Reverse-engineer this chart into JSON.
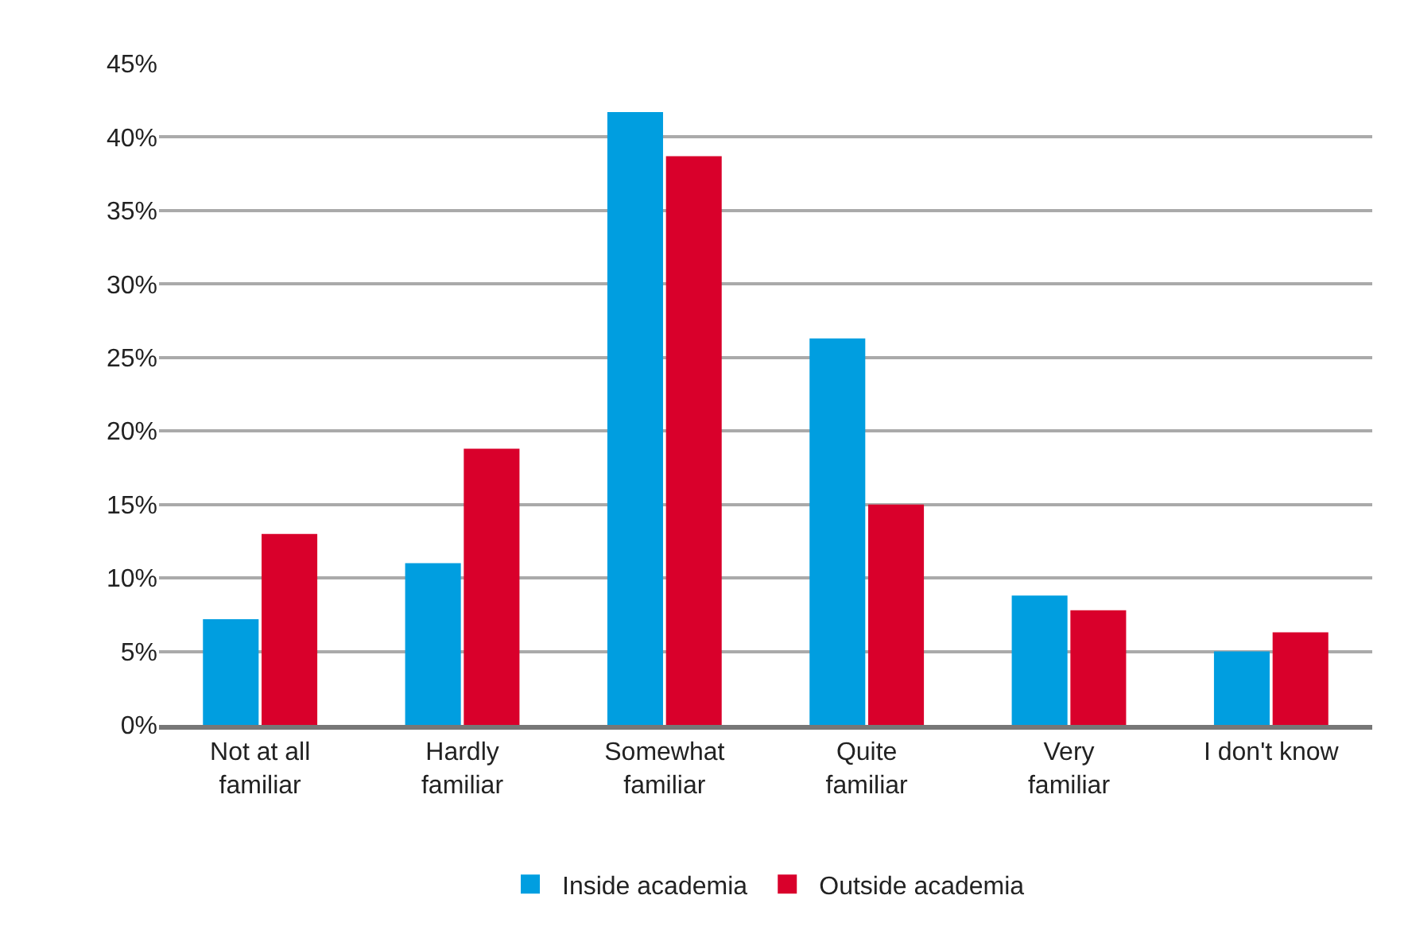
{
  "chart_data": {
    "type": "bar",
    "categories": [
      "Not at all familiar",
      "Hardly familiar",
      "Somewhat familiar",
      "Quite familiar",
      "Very familiar",
      "I don't know"
    ],
    "series": [
      {
        "name": "Inside academia",
        "color": "#009ee0",
        "values": [
          7.2,
          11.0,
          41.7,
          26.3,
          8.8,
          5.0
        ]
      },
      {
        "name": "Outside academia",
        "color": "#d9002b",
        "values": [
          13.0,
          18.8,
          38.7,
          15.0,
          7.8,
          6.3
        ]
      }
    ],
    "ylim": [
      0,
      45
    ],
    "yticks": [
      {
        "value": 0,
        "label": "0%"
      },
      {
        "value": 5,
        "label": "5%"
      },
      {
        "value": 10,
        "label": "10%"
      },
      {
        "value": 15,
        "label": "15%"
      },
      {
        "value": 20,
        "label": "20%"
      },
      {
        "value": 25,
        "label": "25%"
      },
      {
        "value": 30,
        "label": "30%"
      },
      {
        "value": 35,
        "label": "35%"
      },
      {
        "value": 40,
        "label": "40%"
      },
      {
        "value": 45,
        "label": "45%"
      }
    ],
    "grid": "y",
    "legend": "bottom"
  }
}
